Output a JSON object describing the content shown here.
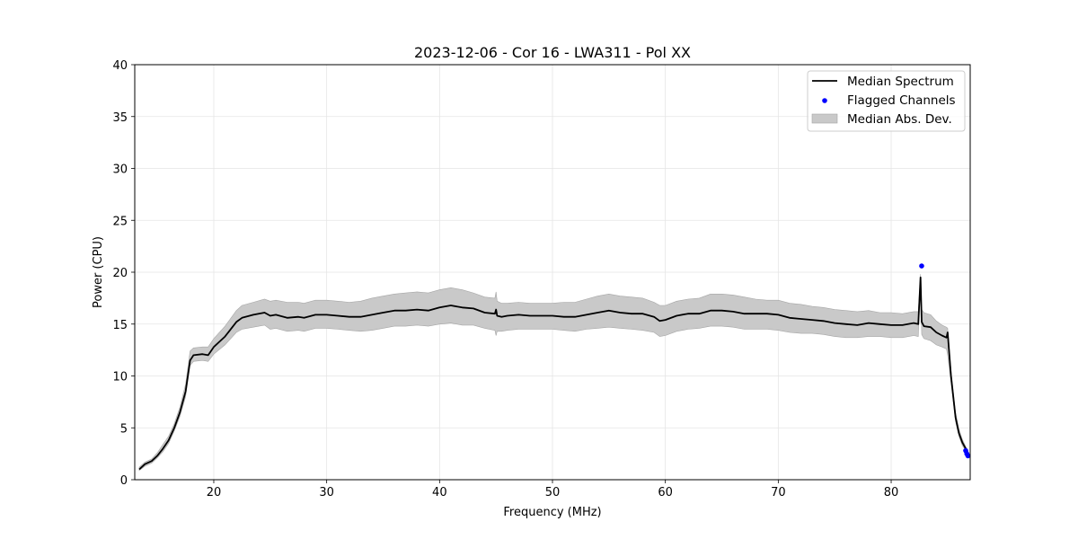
{
  "chart_data": {
    "type": "line",
    "title": "2023-12-06 - Cor 16 - LWA311 - Pol XX",
    "xlabel": "Frequency (MHz)",
    "ylabel": "Power (CPU)",
    "xlim": [
      13,
      87
    ],
    "ylim": [
      0,
      40
    ],
    "xticks": [
      20,
      30,
      40,
      50,
      60,
      70,
      80
    ],
    "yticks": [
      0,
      5,
      10,
      15,
      20,
      25,
      30,
      35,
      40
    ],
    "xtick_labels": [
      "20",
      "30",
      "40",
      "50",
      "60",
      "70",
      "80"
    ],
    "ytick_labels": [
      "0",
      "5",
      "10",
      "15",
      "20",
      "25",
      "30",
      "35",
      "40"
    ],
    "grid": true,
    "legend_position": "upper-right",
    "legend": [
      "Median Spectrum",
      "Flagged Channels",
      "Median Abs. Dev."
    ],
    "series": [
      {
        "name": "Median Spectrum",
        "color": "#000000",
        "x": [
          13.4,
          13.9,
          14.5,
          15.0,
          15.5,
          16.0,
          16.5,
          17.0,
          17.5,
          17.9,
          18.2,
          19.0,
          19.5,
          20.0,
          21.0,
          22.0,
          22.5,
          23.5,
          24.5,
          25.0,
          25.5,
          26.5,
          27.5,
          28.0,
          29.0,
          30.0,
          31.0,
          32.0,
          33.0,
          34.0,
          35.0,
          36.0,
          37.0,
          38.0,
          39.0,
          40.0,
          41.0,
          42.0,
          43.0,
          44.0,
          44.9,
          45.0,
          45.1,
          45.5,
          46.0,
          47.0,
          48.0,
          49.0,
          50.0,
          51.0,
          52.0,
          53.0,
          54.0,
          55.0,
          56.0,
          57.0,
          58.0,
          59.0,
          59.5,
          60.0,
          61.0,
          62.0,
          63.0,
          64.0,
          65.0,
          66.0,
          67.0,
          68.0,
          69.0,
          70.0,
          71.0,
          72.0,
          73.0,
          74.0,
          75.0,
          76.0,
          77.0,
          78.0,
          79.0,
          80.0,
          81.0,
          82.0,
          82.4,
          82.6,
          82.7,
          82.9,
          83.5,
          84.0,
          84.5,
          84.9,
          85.0,
          85.3,
          85.7,
          86.0,
          86.3,
          86.6,
          86.8
        ],
        "y": [
          1.0,
          1.5,
          1.8,
          2.3,
          3.0,
          3.8,
          5.0,
          6.5,
          8.5,
          11.5,
          12.0,
          12.1,
          12.0,
          12.8,
          13.8,
          15.2,
          15.6,
          15.9,
          16.1,
          15.8,
          15.9,
          15.6,
          15.7,
          15.6,
          15.9,
          15.9,
          15.8,
          15.7,
          15.7,
          15.9,
          16.1,
          16.3,
          16.3,
          16.4,
          16.3,
          16.6,
          16.8,
          16.6,
          16.5,
          16.1,
          16.0,
          16.4,
          15.8,
          15.7,
          15.8,
          15.9,
          15.8,
          15.8,
          15.8,
          15.7,
          15.7,
          15.9,
          16.1,
          16.3,
          16.1,
          16.0,
          16.0,
          15.7,
          15.3,
          15.4,
          15.8,
          16.0,
          16.0,
          16.3,
          16.3,
          16.2,
          16.0,
          16.0,
          16.0,
          15.9,
          15.6,
          15.5,
          15.4,
          15.3,
          15.1,
          15.0,
          14.9,
          15.1,
          15.0,
          14.9,
          14.9,
          15.1,
          15.0,
          19.5,
          15.2,
          14.8,
          14.7,
          14.2,
          13.9,
          13.7,
          14.2,
          10.0,
          6.0,
          4.5,
          3.6,
          3.0,
          2.6
        ],
        "upper": [
          1.2,
          1.7,
          2.0,
          2.6,
          3.4,
          4.2,
          5.4,
          7.0,
          9.2,
          12.4,
          12.7,
          12.8,
          12.8,
          13.6,
          14.8,
          16.3,
          16.8,
          17.1,
          17.4,
          17.2,
          17.3,
          17.1,
          17.1,
          17.0,
          17.3,
          17.3,
          17.2,
          17.1,
          17.2,
          17.5,
          17.7,
          17.9,
          18.0,
          18.1,
          18.0,
          18.3,
          18.5,
          18.3,
          18.0,
          17.6,
          17.5,
          18.1,
          17.2,
          17.0,
          17.0,
          17.1,
          17.0,
          17.0,
          17.0,
          17.1,
          17.1,
          17.4,
          17.7,
          17.9,
          17.7,
          17.6,
          17.5,
          17.1,
          16.8,
          16.8,
          17.2,
          17.4,
          17.5,
          17.9,
          17.9,
          17.8,
          17.6,
          17.4,
          17.3,
          17.3,
          17.0,
          16.9,
          16.7,
          16.6,
          16.4,
          16.3,
          16.2,
          16.3,
          16.1,
          16.1,
          16.0,
          16.2,
          16.2,
          19.8,
          16.4,
          16.1,
          15.9,
          15.3,
          14.9,
          14.7,
          14.6,
          10.6,
          6.5,
          4.9,
          3.9,
          3.2,
          2.8
        ],
        "lower": [
          0.9,
          1.3,
          1.6,
          2.1,
          2.7,
          3.5,
          4.7,
          6.1,
          8.0,
          11.0,
          11.4,
          11.5,
          11.4,
          12.1,
          13.0,
          14.2,
          14.5,
          14.7,
          14.9,
          14.5,
          14.6,
          14.3,
          14.4,
          14.3,
          14.6,
          14.6,
          14.5,
          14.4,
          14.3,
          14.4,
          14.6,
          14.8,
          14.8,
          14.9,
          14.8,
          15.0,
          15.1,
          14.9,
          14.9,
          14.6,
          14.4,
          13.9,
          14.3,
          14.3,
          14.4,
          14.5,
          14.5,
          14.5,
          14.5,
          14.4,
          14.3,
          14.5,
          14.6,
          14.7,
          14.6,
          14.5,
          14.4,
          14.2,
          13.8,
          13.9,
          14.3,
          14.5,
          14.6,
          14.8,
          14.8,
          14.7,
          14.5,
          14.5,
          14.5,
          14.4,
          14.2,
          14.1,
          14.1,
          14.0,
          13.8,
          13.7,
          13.7,
          13.8,
          13.8,
          13.7,
          13.7,
          13.9,
          13.8,
          19.2,
          14.0,
          13.6,
          13.4,
          13.0,
          12.8,
          12.6,
          12.0,
          9.4,
          5.6,
          4.2,
          3.3,
          2.8,
          2.4
        ]
      },
      {
        "name": "Flagged Channels",
        "color": "#0000ff",
        "x": [
          82.7,
          86.6,
          86.7,
          86.8
        ],
        "y": [
          20.6,
          2.8,
          2.5,
          2.3
        ]
      }
    ],
    "band_color": "#c9c9c9"
  }
}
